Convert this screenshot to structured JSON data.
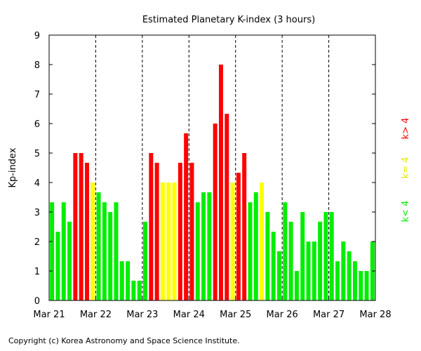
{
  "chart_data": {
    "type": "bar",
    "title": "Estimated Planetary K-index (3 hours)",
    "xlabel": "",
    "ylabel": "Kp-index",
    "ylim": [
      0,
      9
    ],
    "yticks": [
      "0",
      "1",
      "2",
      "3",
      "4",
      "5",
      "6",
      "7",
      "8",
      "9"
    ],
    "day_labels": [
      "Mar 21",
      "Mar 22",
      "Mar 23",
      "Mar 24",
      "Mar 25",
      "Mar 26",
      "Mar 27",
      "Mar 28"
    ],
    "bars_per_day": 8,
    "values": [
      3.33,
      2.33,
      3.33,
      2.67,
      5.0,
      5.0,
      4.67,
      4.0,
      3.67,
      3.33,
      3.0,
      3.33,
      1.33,
      1.33,
      0.67,
      0.67,
      2.67,
      5.0,
      4.67,
      4.0,
      4.0,
      4.0,
      4.67,
      5.67,
      4.67,
      3.33,
      3.67,
      3.67,
      6.0,
      8.0,
      6.33,
      4.0,
      4.33,
      5.0,
      3.33,
      3.67,
      4.0,
      3.0,
      2.33,
      1.67,
      3.33,
      2.67,
      1.0,
      3.0,
      2.0,
      2.0,
      2.67,
      3.0,
      3.0,
      1.33,
      2.0,
      1.67,
      1.33,
      1.0,
      1.0,
      2.0
    ],
    "colors": {
      "below": "#00ee00",
      "equal": "#ffff00",
      "above": "#ff0000"
    },
    "legend": [
      "k< 4",
      "k= 4",
      "k> 4"
    ],
    "legend_position": "right-vertical",
    "grid": "vertical-dashed-day-separators"
  },
  "footer": {
    "copyright": "Copyright (c) Korea Astronomy and Space Science Institute."
  }
}
